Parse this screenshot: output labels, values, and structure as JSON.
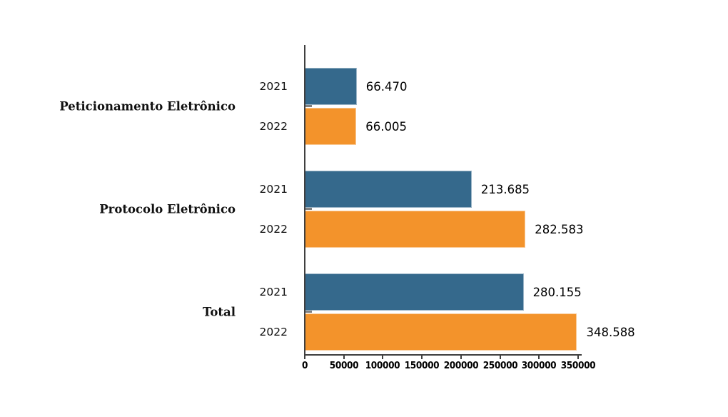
{
  "chart_data": {
    "type": "bar",
    "orientation": "horizontal",
    "title": "",
    "categories": [
      "Peticionamento Eletrônico",
      "Protocolo Eletrônico",
      "Total"
    ],
    "series": [
      {
        "name": "2021",
        "color": "#35698C",
        "values": [
          66470,
          213685,
          280155
        ],
        "labels": [
          "66.470",
          "213.685",
          "280.155"
        ]
      },
      {
        "name": "2022",
        "color": "#F3932B",
        "values": [
          66005,
          282583,
          348588
        ],
        "labels": [
          "66.005",
          "282.583",
          "348.588"
        ]
      }
    ],
    "xlabel": "",
    "ylabel": "",
    "xlim": [
      0,
      350000
    ],
    "x_ticks": [
      0,
      50000,
      100000,
      150000,
      200000,
      250000,
      300000,
      350000
    ],
    "x_tick_labels": [
      "0",
      "50000",
      "100000",
      "150000",
      "200000",
      "250000",
      "300000",
      "350000"
    ],
    "grid": false,
    "legend": "none",
    "value_label_position": "outside-end",
    "axis_color": "#3F3F3F",
    "category_tick_color": "#808080",
    "text_color": "#000000",
    "background": "#FFFFFF"
  }
}
